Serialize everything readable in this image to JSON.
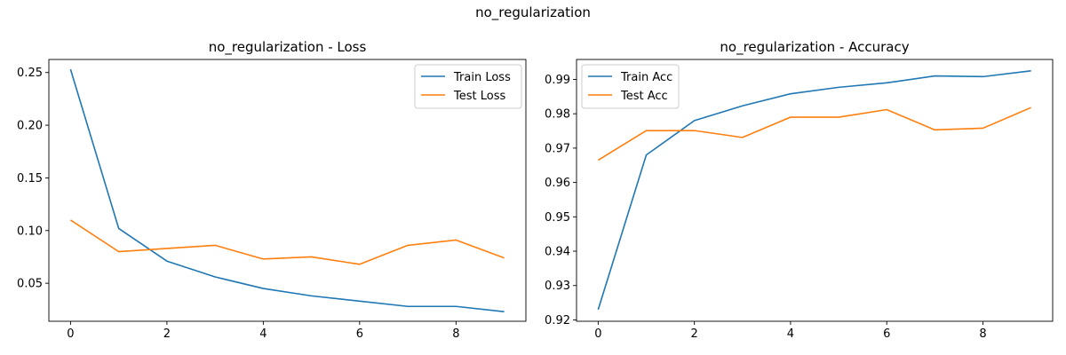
{
  "figure": {
    "suptitle": "no_regularization",
    "colors": {
      "train": "#1f77b4",
      "test": "#ff7f0e"
    }
  },
  "chart_data": [
    {
      "type": "line",
      "title": "no_regularization - Loss",
      "xlabel": "",
      "ylabel": "",
      "x": [
        0,
        1,
        2,
        3,
        4,
        5,
        6,
        7,
        8,
        9
      ],
      "xlim": [
        -0.45,
        9.45
      ],
      "ylim": [
        0.0139,
        0.2624
      ],
      "xticks": [
        0,
        2,
        4,
        6,
        8
      ],
      "yticks": [
        0.05,
        0.1,
        0.15,
        0.2,
        0.25
      ],
      "ytick_labels": [
        "0.05",
        "0.10",
        "0.15",
        "0.20",
        "0.25"
      ],
      "legend_position": "top-right",
      "series": [
        {
          "name": "Train Loss",
          "color": "#1f77b4",
          "values": [
            0.253,
            0.102,
            0.071,
            0.056,
            0.045,
            0.038,
            0.033,
            0.028,
            0.028,
            0.023
          ]
        },
        {
          "name": "Test Loss",
          "color": "#ff7f0e",
          "values": [
            0.11,
            0.08,
            0.083,
            0.086,
            0.073,
            0.075,
            0.068,
            0.086,
            0.091,
            0.074
          ]
        }
      ]
    },
    {
      "type": "line",
      "title": "no_regularization - Accuracy",
      "xlabel": "",
      "ylabel": "",
      "x": [
        0,
        1,
        2,
        3,
        4,
        5,
        6,
        7,
        8,
        9
      ],
      "xlim": [
        -0.45,
        9.45
      ],
      "ylim": [
        0.9196,
        0.9958
      ],
      "xticks": [
        0,
        2,
        4,
        6,
        8
      ],
      "yticks": [
        0.92,
        0.93,
        0.94,
        0.95,
        0.96,
        0.97,
        0.98,
        0.99
      ],
      "ytick_labels": [
        "0.92",
        "0.93",
        "0.94",
        "0.95",
        "0.96",
        "0.97",
        "0.98",
        "0.99"
      ],
      "legend_position": "top-left",
      "series": [
        {
          "name": "Train Acc",
          "color": "#1f77b4",
          "values": [
            0.923,
            0.968,
            0.978,
            0.9823,
            0.9858,
            0.9877,
            0.989,
            0.991,
            0.9908,
            0.9925
          ]
        },
        {
          "name": "Test Acc",
          "color": "#ff7f0e",
          "values": [
            0.9665,
            0.9751,
            0.9751,
            0.9731,
            0.979,
            0.979,
            0.9812,
            0.9753,
            0.9758,
            0.9818
          ]
        }
      ]
    }
  ]
}
